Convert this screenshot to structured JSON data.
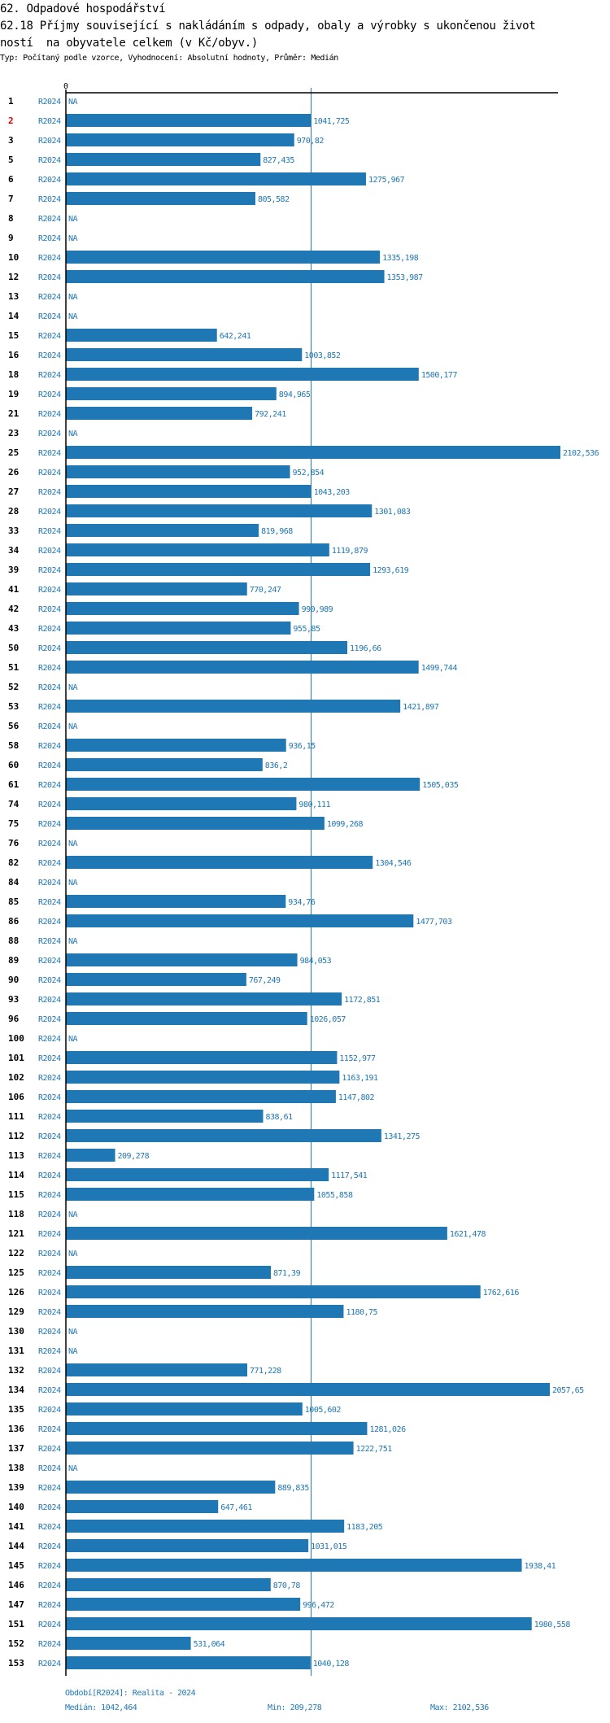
{
  "header": {
    "section": "62. Odpadové hospodářství",
    "title_line1": "62.18 Příjmy související s nakládáním s odpady, obaly a výrobky s ukončenou život",
    "title_line2": "ností  na obyvatele celkem (v Kč/obyv.)",
    "subtitle": "Typ: Počítaný podle vzorce, Vyhodnocení: Absolutní hodnoty, Průměr: Medián"
  },
  "footer": {
    "period": "Období[R2024]: Realita - 2024",
    "median": "Medián: 1042,464",
    "min": "Min: 209,278",
    "max": "Max: 2102,536"
  },
  "colors": {
    "bar": "#1f77b4",
    "highlight_row": "#e00000"
  },
  "chart_data": {
    "type": "bar",
    "orientation": "horizontal",
    "title": "62.18 Příjmy související s nakládáním s odpady, obaly a výrobky s ukončenou životností na obyvatele celkem (v Kč/obyv.)",
    "xlabel": "",
    "ylabel": "",
    "x_tick_labels": [
      "0"
    ],
    "xlim": [
      0,
      2102.536
    ],
    "reference_line": {
      "name": "Medián",
      "value": 1042.464
    },
    "highlighted_category": "2",
    "series_name": "R2024",
    "categories": [
      "1",
      "2",
      "3",
      "5",
      "6",
      "7",
      "8",
      "9",
      "10",
      "12",
      "13",
      "14",
      "15",
      "16",
      "18",
      "19",
      "21",
      "23",
      "25",
      "26",
      "27",
      "28",
      "33",
      "34",
      "39",
      "41",
      "42",
      "43",
      "50",
      "51",
      "52",
      "53",
      "56",
      "58",
      "60",
      "61",
      "74",
      "75",
      "76",
      "82",
      "84",
      "85",
      "86",
      "88",
      "89",
      "90",
      "93",
      "96",
      "100",
      "101",
      "102",
      "106",
      "111",
      "112",
      "113",
      "114",
      "115",
      "118",
      "121",
      "122",
      "125",
      "126",
      "129",
      "130",
      "131",
      "132",
      "134",
      "135",
      "136",
      "137",
      "138",
      "139",
      "140",
      "141",
      "144",
      "145",
      "146",
      "147",
      "151",
      "152",
      "153"
    ],
    "values": [
      null,
      1041.725,
      970.82,
      827.435,
      1275.967,
      805.582,
      null,
      null,
      1335.198,
      1353.987,
      null,
      null,
      642.241,
      1003.852,
      1500.177,
      894.965,
      792.241,
      null,
      2102.536,
      952.854,
      1043.203,
      1301.083,
      819.968,
      1119.879,
      1293.619,
      770.247,
      990.989,
      955.85,
      1196.66,
      1499.744,
      null,
      1421.897,
      null,
      936.15,
      836.2,
      1505.035,
      980.111,
      1099.268,
      null,
      1304.546,
      null,
      934.76,
      1477.703,
      null,
      984.053,
      767.249,
      1172.851,
      1026.057,
      null,
      1152.977,
      1163.191,
      1147.802,
      838.61,
      1341.275,
      209.278,
      1117.541,
      1055.858,
      null,
      1621.478,
      null,
      871.39,
      1762.616,
      1180.75,
      null,
      null,
      771.228,
      2057.65,
      1005.602,
      1281.026,
      1222.751,
      null,
      889.835,
      647.461,
      1183.205,
      1031.015,
      1938.41,
      870.78,
      996.472,
      1980.558,
      531.064,
      1040.128
    ],
    "value_labels": [
      "NA",
      "1041,725",
      "970,82",
      "827,435",
      "1275,967",
      "805,582",
      "NA",
      "NA",
      "1335,198",
      "1353,987",
      "NA",
      "NA",
      "642,241",
      "1003,852",
      "1500,177",
      "894,965",
      "792,241",
      "NA",
      "2102,536",
      "952,854",
      "1043,203",
      "1301,083",
      "819,968",
      "1119,879",
      "1293,619",
      "770,247",
      "990,989",
      "955,85",
      "1196,66",
      "1499,744",
      "NA",
      "1421,897",
      "NA",
      "936,15",
      "836,2",
      "1505,035",
      "980,111",
      "1099,268",
      "NA",
      "1304,546",
      "NA",
      "934,76",
      "1477,703",
      "NA",
      "984,053",
      "767,249",
      "1172,851",
      "1026,057",
      "NA",
      "1152,977",
      "1163,191",
      "1147,802",
      "838,61",
      "1341,275",
      "209,278",
      "1117,541",
      "1055,858",
      "NA",
      "1621,478",
      "NA",
      "871,39",
      "1762,616",
      "1180,75",
      "NA",
      "NA",
      "771,228",
      "2057,65",
      "1005,602",
      "1281,026",
      "1222,751",
      "NA",
      "889,835",
      "647,461",
      "1183,205",
      "1031,015",
      "1938,41",
      "870,78",
      "996,472",
      "1980,558",
      "531,064",
      "1040,128"
    ],
    "summary": {
      "median": 1042.464,
      "min": 209.278,
      "max": 2102.536
    }
  }
}
